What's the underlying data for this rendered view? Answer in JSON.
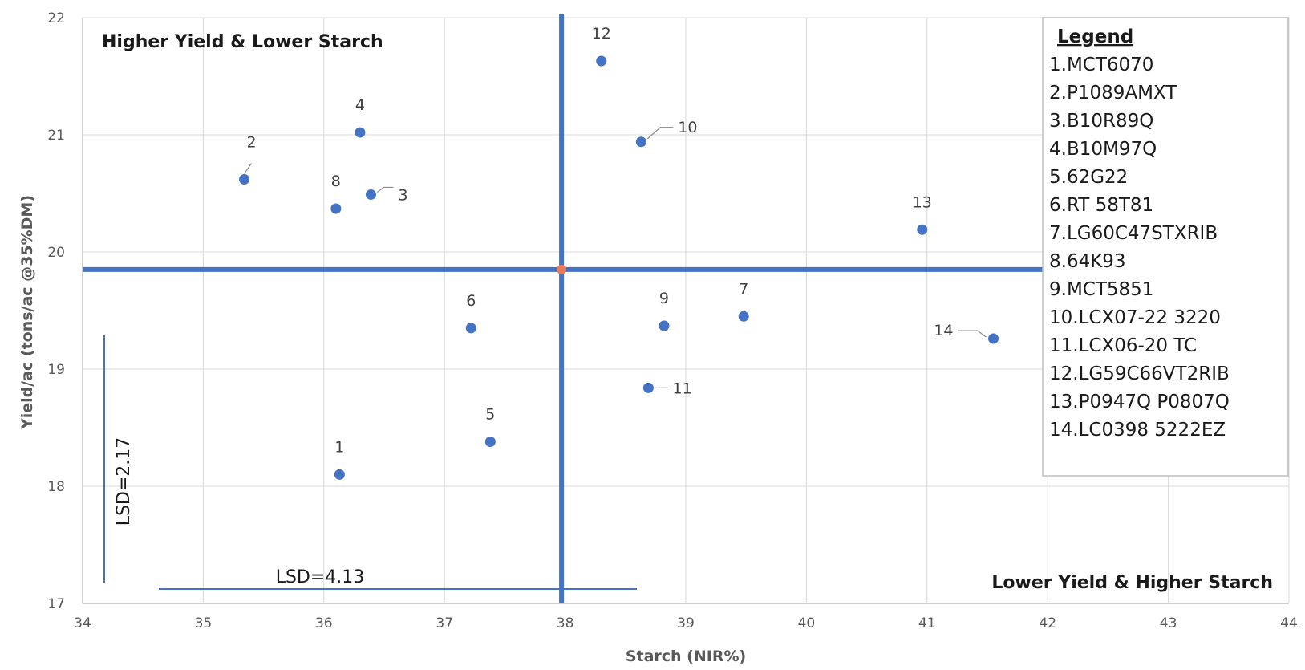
{
  "chart_data": {
    "type": "scatter",
    "xlabel": "Starch (NIR%)",
    "ylabel": "Yield/ac (tons/ac @35%DM)",
    "xlim": [
      34,
      44
    ],
    "ylim": [
      17,
      22
    ],
    "x_ticks": [
      "34",
      "35",
      "36",
      "37",
      "38",
      "39",
      "40",
      "41",
      "42",
      "43",
      "44"
    ],
    "y_ticks": [
      "17",
      "18",
      "19",
      "20",
      "21",
      "22"
    ],
    "grid": true,
    "point_color": "#4472c4",
    "reference_lines": {
      "x": 37.97,
      "y": 19.85,
      "color": "#4472c4"
    },
    "points": [
      {
        "label": "1",
        "x": 36.13,
        "y": 18.1
      },
      {
        "label": "2",
        "x": 35.34,
        "y": 20.62
      },
      {
        "label": "3",
        "x": 36.39,
        "y": 20.49
      },
      {
        "label": "4",
        "x": 36.3,
        "y": 21.02
      },
      {
        "label": "5",
        "x": 37.38,
        "y": 18.38
      },
      {
        "label": "6",
        "x": 37.22,
        "y": 19.35
      },
      {
        "label": "7",
        "x": 39.48,
        "y": 19.45
      },
      {
        "label": "8",
        "x": 36.1,
        "y": 20.37
      },
      {
        "label": "9",
        "x": 38.82,
        "y": 19.37
      },
      {
        "label": "10",
        "x": 38.63,
        "y": 20.94
      },
      {
        "label": "11",
        "x": 38.69,
        "y": 18.84
      },
      {
        "label": "12",
        "x": 38.3,
        "y": 21.63
      },
      {
        "label": "13",
        "x": 40.96,
        "y": 20.19
      },
      {
        "label": "14",
        "x": 41.55,
        "y": 19.26
      }
    ],
    "annotations": {
      "top_left": "Higher Yield & Lower Starch",
      "bottom_right": "Lower Yield & Higher Starch",
      "lsd_y": "LSD=2.17",
      "lsd_x": "LSD=4.13"
    },
    "legend": {
      "title": "Legend",
      "position": "top-right",
      "items": [
        "1.MCT6070",
        "2.P1089AMXT",
        "3.B10R89Q",
        "4.B10M97Q",
        "5.62G22",
        "6.RT 58T81",
        "7.LG60C47STXRIB",
        "8.64K93",
        "9.MCT5851",
        "10.LCX07-22 3220",
        "11.LCX06-20 TC",
        "12.LG59C66VT2RIB",
        "13.P0947Q P0807Q",
        "14.LC0398 5222EZ"
      ]
    }
  }
}
